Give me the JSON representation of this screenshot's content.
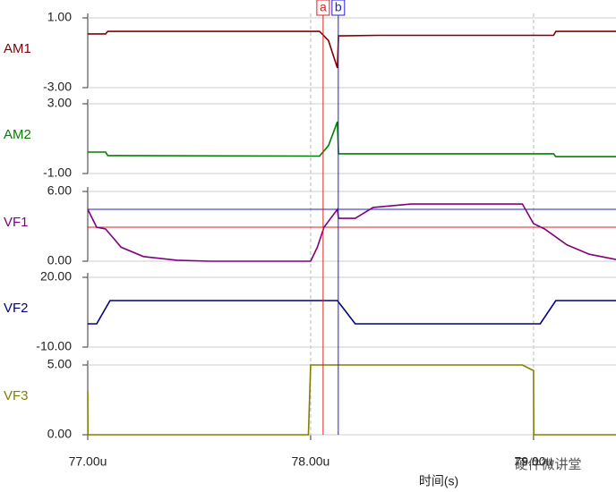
{
  "chart_data": [
    {
      "type": "line",
      "x": [
        77.0,
        77.08,
        77.09,
        78.04,
        78.08,
        78.12,
        78.125,
        78.3,
        79.0,
        79.09,
        79.1,
        79.37
      ],
      "series": [
        {
          "name": "AM1",
          "color": "#800000",
          "values": [
            0.08,
            0.08,
            0.23,
            0.23,
            -0.3,
            -1.87,
            -0.03,
            0.0,
            0.0,
            0.0,
            0.23,
            0.23
          ]
        }
      ],
      "xlim": [
        77,
        79.37
      ],
      "ylim": [
        -3,
        1
      ],
      "yticks": [
        {
          "value": 1,
          "label": "1.00"
        },
        {
          "value": -3,
          "label": "-3.00"
        }
      ]
    },
    {
      "type": "line",
      "x": [
        77.0,
        77.08,
        77.09,
        78.04,
        78.08,
        78.12,
        78.125,
        78.3,
        79.0,
        79.09,
        79.1,
        79.37
      ],
      "series": [
        {
          "name": "AM2",
          "color": "#008000",
          "values": [
            0.23,
            0.23,
            0.03,
            0.0,
            0.6,
            1.97,
            0.13,
            0.13,
            0.13,
            0.13,
            -0.03,
            -0.03
          ]
        }
      ],
      "xlim": [
        77,
        79.37
      ],
      "ylim": [
        -1,
        3
      ],
      "yticks": [
        {
          "value": 3,
          "label": "3.00"
        },
        {
          "value": -1,
          "label": "-1.00"
        }
      ]
    },
    {
      "type": "line",
      "x": [
        77.0,
        77.04,
        77.08,
        77.15,
        77.25,
        77.4,
        77.55,
        78.0,
        78.03,
        78.06,
        78.12,
        78.125,
        78.2,
        78.28,
        78.45,
        78.95,
        79.0,
        79.05,
        79.15,
        79.25,
        79.37
      ],
      "series": [
        {
          "name": "VF1",
          "color": "#800080",
          "values": [
            4.46,
            2.92,
            2.77,
            1.2,
            0.4,
            0.08,
            0,
            0,
            1.2,
            2.92,
            4.46,
            3.69,
            3.69,
            4.62,
            4.92,
            4.92,
            3.23,
            2.77,
            1.4,
            0.6,
            0.15
          ]
        }
      ],
      "xlim": [
        77,
        79.37
      ],
      "ylim": [
        0,
        6
      ],
      "yticks": [
        {
          "value": 6,
          "label": "6.00"
        },
        {
          "value": 0,
          "label": "0.00"
        }
      ],
      "hlines": [
        {
          "value": 4.46,
          "color": "#2020d0"
        },
        {
          "value": 2.92,
          "color": "#e02020"
        }
      ]
    },
    {
      "type": "line",
      "x": [
        77.0,
        77.04,
        77.1,
        78.12,
        78.2,
        79.03,
        79.1,
        79.37
      ],
      "series": [
        {
          "name": "VF2",
          "color": "#000080",
          "values": [
            0,
            0,
            10,
            10,
            0,
            0,
            10,
            10
          ]
        }
      ],
      "xlim": [
        77,
        79.37
      ],
      "ylim": [
        -10,
        20
      ],
      "yticks": [
        {
          "value": 20,
          "label": "20.00"
        },
        {
          "value": -10,
          "label": "-10.00"
        }
      ]
    },
    {
      "type": "line",
      "x": [
        77.0,
        77.001,
        77.99,
        78.0,
        78.95,
        79.0,
        79.001,
        79.37
      ],
      "series": [
        {
          "name": "VF3",
          "color": "#808000",
          "values": [
            3.1,
            0,
            0,
            5,
            5,
            4.6,
            0,
            0
          ]
        }
      ],
      "xlim": [
        77,
        79.37
      ],
      "ylim": [
        0,
        5
      ],
      "yticks": [
        {
          "value": 5,
          "label": "5.00"
        },
        {
          "value": 0,
          "label": "0.00"
        }
      ],
      "xticks": [
        {
          "value": 77,
          "label": "77.00u"
        },
        {
          "value": 78,
          "label": "78.00u"
        },
        {
          "value": 79,
          "label": "79.00u"
        }
      ],
      "xlabel": "时间(s)"
    }
  ],
  "cursors": [
    {
      "label": "a",
      "x": 78.056,
      "color": "#e02020"
    },
    {
      "label": "b",
      "x": 78.124,
      "color": "#2020d0"
    }
  ],
  "watermark": "硬件微讲堂"
}
